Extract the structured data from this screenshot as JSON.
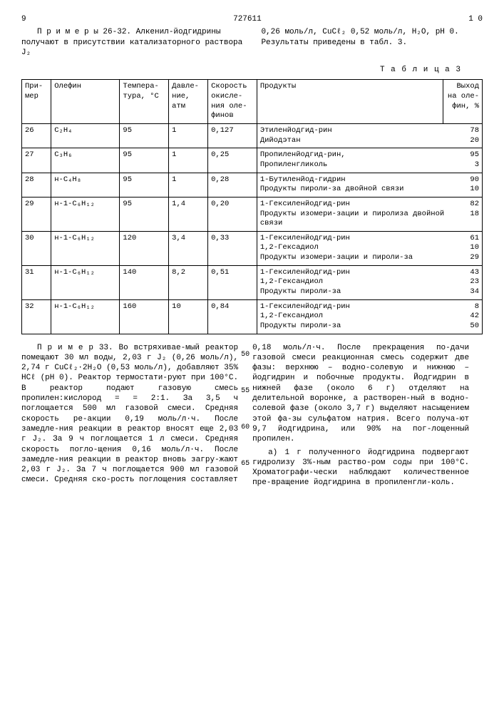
{
  "doc_number": "727611",
  "page_left_num": "9",
  "page_right_num": "1 0",
  "intro_left": "П р и м е р ы  26-32. Алкенил-йодгидрины получают в присутствии катализаторного раствора J₂",
  "intro_right": "0,26 моль/л, CuCℓ₂ 0,52 моль/л, H₂O, pH 0. Результаты приведены в табл. 3.",
  "table_caption": "Т а б л и ц а  3",
  "headers": {
    "c1": "При-мер",
    "c2": "Олефин",
    "c3": "Темпера-тура, °С",
    "c4": "Давле-ние, атм",
    "c5": "Скорость окисле-ния оле-финов",
    "c6": "Продукты",
    "c7": "Выход на оле-фин, %"
  },
  "rows": [
    {
      "n": "26",
      "olef": "C₂H₄",
      "t": "95",
      "p": "1",
      "r": "0,127",
      "prods": [
        [
          "Этиленйодгид-рин",
          "78"
        ],
        [
          "Дийодэтан",
          "20"
        ]
      ]
    },
    {
      "n": "27",
      "olef": "C₃H₆",
      "t": "95",
      "p": "1",
      "r": "0,25",
      "prods": [
        [
          "Пропиленйодгид-рин,",
          "95"
        ],
        [
          "Пропиленгликоль",
          "3"
        ]
      ]
    },
    {
      "n": "28",
      "olef": "н-C₄H₈",
      "t": "95",
      "p": "1",
      "r": "0,28",
      "prods": [
        [
          "1-Бутиленйод-гидрин",
          "90"
        ],
        [
          "Продукты пироли-за двойной связи",
          "10"
        ]
      ]
    },
    {
      "n": "29",
      "olef": "н-1-C₆H₁₂",
      "t": "95",
      "p": "1,4",
      "r": "0,20",
      "prods": [
        [
          "1-Гексиленйодгид-рин",
          "82"
        ],
        [
          "Продукты изомери-зации и пиролиза двойной связи",
          "18"
        ]
      ]
    },
    {
      "n": "30",
      "olef": "н-1-C₆H₁₂",
      "t": "120",
      "p": "3,4",
      "r": "0,33",
      "prods": [
        [
          "1-Гексиленйодгид-рин",
          "61"
        ],
        [
          "1,2-Гексадиол",
          "10"
        ],
        [
          "Продукты изомери-зации и пироли-за",
          "29"
        ]
      ]
    },
    {
      "n": "31",
      "olef": "н-1-C₆H₁₂",
      "t": "140",
      "p": "8,2",
      "r": "0,51",
      "prods": [
        [
          "1-Гексиленйодгид-рин",
          "43"
        ],
        [
          "1,2-Гександиол",
          "23"
        ],
        [
          "Продукты пироли-за",
          "34"
        ]
      ]
    },
    {
      "n": "32",
      "olef": "н-1-C₆H₁₂",
      "t": "160",
      "p": "10",
      "r": "0,84",
      "prods": [
        [
          "1-Гексиленйодгид-рин",
          "8"
        ],
        [
          "1,2-Гександиол",
          "42"
        ],
        [
          "Продукты  пироли-за",
          "50"
        ]
      ]
    }
  ],
  "body_left": "П р и м е р  33. Во встряхивае-мый реактор помещают 30 мл воды, 2,03 г J₂ (0,26 моль/л), 2,74 г CuCℓ₂·2H₂O (0,53 моль/л), добавляют 35% HCℓ (pH 0). Реактор термостати-руют при 100°С. В реактор подают газовую смесь пропилен:кислород = = 2:1. За 3,5 ч поглощается 500 мл газовой смеси. Средняя скорость ре-акции 0,19 моль/л·ч. После замедле-ния реакции в реактор вносят еще 2,03 г J₂. За 9 ч поглощается 1 л смеси. Средняя скорость погло-щения 0,16 моль/л·ч. После замедле-ния реакции в реактор вновь загру-жают 2,03 г J₂. За 7 ч поглощается 900 мл газовой смеси. Средняя ско-рость поглощения составляет",
  "body_right_p1": "0,18 моль/л·ч. После прекращения по-дачи газовой смеси реакционная смесь содержит две фазы: верхнюю – водно-солевую и нижнюю – йодгидрин и побочные продукты. Йодгидрин в нижней фазе (около 6 г) отделяют на делительной воронке, а растворен-ный в водно-солевой фазе (около 3,7 г) выделяют насыщением этой фа-зы сульфатом натрия. Всего получа-ют 9,7 йодгидрина, или 90% на пог-лощенный пропилен.",
  "body_right_p2": "а) 1 г полученного йодгидрина подвергают гидролизу 3%-ным раство-ром соды при 100°С. Хроматографи-чески наблюдают количественное пре-вращение йодгидрина в пропиленгли-коль.",
  "line_marks": [
    "50",
    "55",
    "60",
    "65"
  ]
}
